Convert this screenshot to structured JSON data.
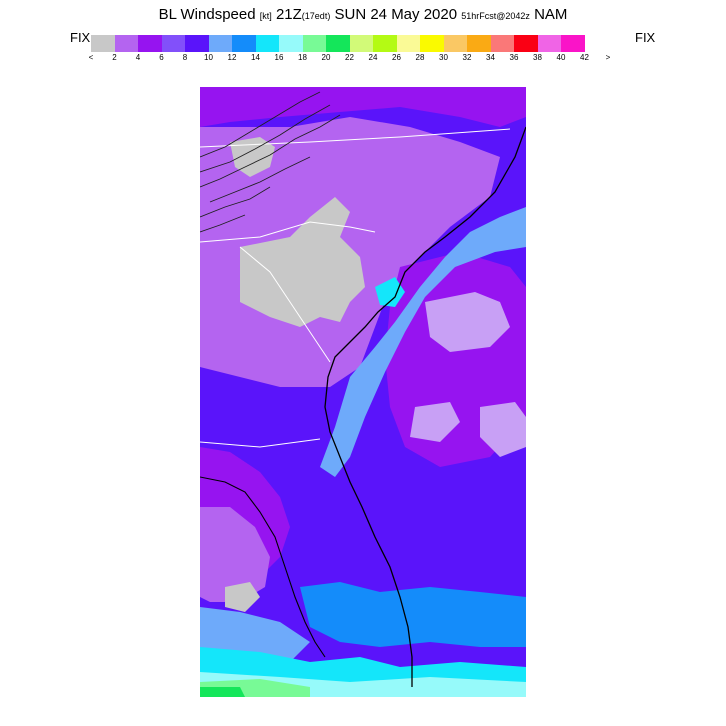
{
  "title": {
    "main": "BL Windspeed",
    "units": "[kt]",
    "valid": "21Z",
    "local": "(17edt)",
    "date": "SUN 24 May 2020",
    "forecast": "51hrFcst@2042z",
    "model": "NAM"
  },
  "fix_left": "FIX",
  "fix_right": "FIX",
  "colorbar": {
    "colors": [
      "#c8c8c8",
      "#b464f0",
      "#9614f0",
      "#8250fa",
      "#5a14fa",
      "#6eaafa",
      "#148cfa",
      "#14e6fa",
      "#96fafa",
      "#78fa96",
      "#14e65a",
      "#d2fa78",
      "#b4fa14",
      "#fafa96",
      "#fafa00",
      "#fac864",
      "#faaa14",
      "#fa7878",
      "#fa0014",
      "#f064e6",
      "#fa14c8"
    ],
    "ticks": [
      "<",
      "2",
      "4",
      "6",
      "8",
      "10",
      "12",
      "14",
      "16",
      "18",
      "20",
      "22",
      "24",
      "26",
      "28",
      "30",
      "32",
      "34",
      "36",
      "38",
      "40",
      "42",
      ">"
    ]
  },
  "map": {
    "fill_colors": {
      "calm": "#c8c8c8",
      "light": "#b464f0",
      "purple": "#9614f0",
      "blue_purple": "#5a14fa",
      "sky": "#6eaafa",
      "blue": "#148cfa",
      "cyan": "#14e6fa",
      "pale_cyan": "#96fafa",
      "green": "#78fa96",
      "bright_green": "#14e65a",
      "lavender": "#c8a0f5"
    },
    "line_colors": {
      "coast": "#000000",
      "border": "#ffffff",
      "contour": "#202020"
    }
  }
}
